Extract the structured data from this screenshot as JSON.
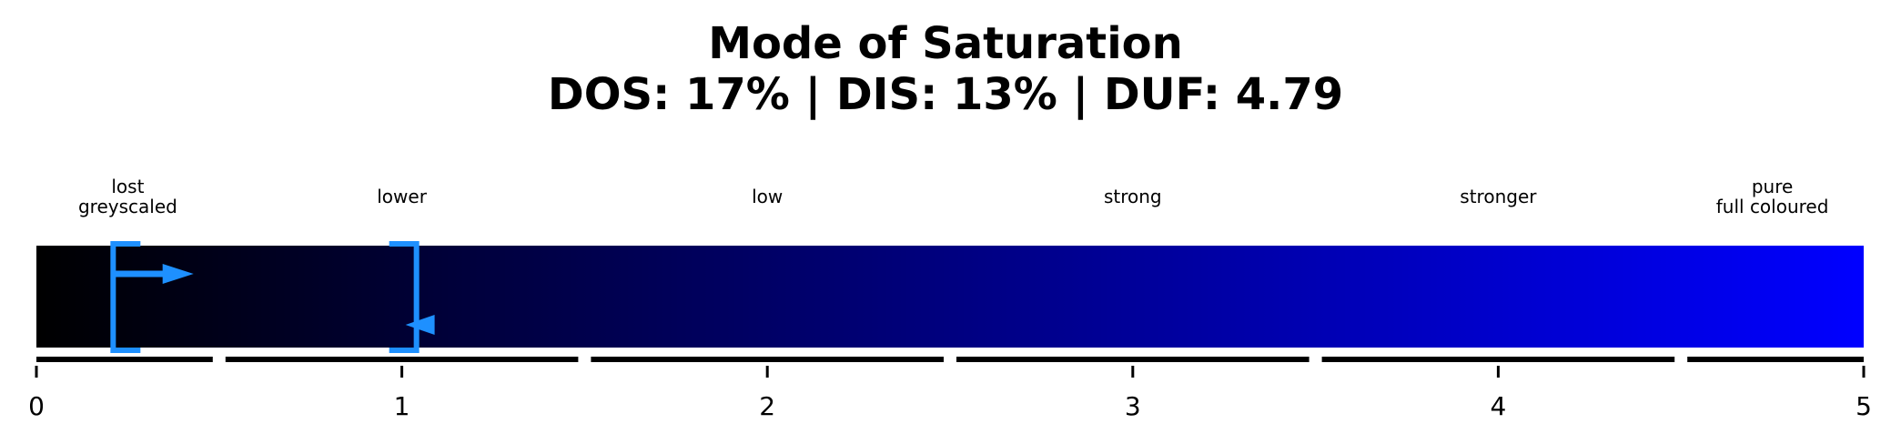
{
  "title": {
    "line1": "Mode of Saturation",
    "line2": "DOS: 17% | DIS: 13% | DUF: 4.79"
  },
  "chart_data": {
    "type": "range-bar",
    "xlim": [
      0,
      5
    ],
    "ticks": [
      "0",
      "1",
      "2",
      "3",
      "4",
      "5"
    ],
    "gradient": {
      "start_color": "#000000",
      "end_color": "#0000ff"
    },
    "categories": [
      {
        "label": "lost\ngreyscaled",
        "from": 0,
        "to": 0.5
      },
      {
        "label": "lower",
        "from": 0.5,
        "to": 1.5
      },
      {
        "label": "low",
        "from": 1.5,
        "to": 2.5
      },
      {
        "label": "strong",
        "from": 2.5,
        "to": 3.5
      },
      {
        "label": "stronger",
        "from": 3.5,
        "to": 4.5
      },
      {
        "label": "pure\nfull coloured",
        "from": 4.5,
        "to": 5
      }
    ],
    "markers": {
      "color": "#1e90ff",
      "left_bracket": 0.21,
      "right_bracket": 1.04,
      "arrow_right": {
        "from": 0.21,
        "to": 0.43
      },
      "arrow_left": {
        "at": 1.0
      }
    },
    "summary": {
      "DOS": "17%",
      "DIS": "13%",
      "DUF": "4.79"
    }
  }
}
